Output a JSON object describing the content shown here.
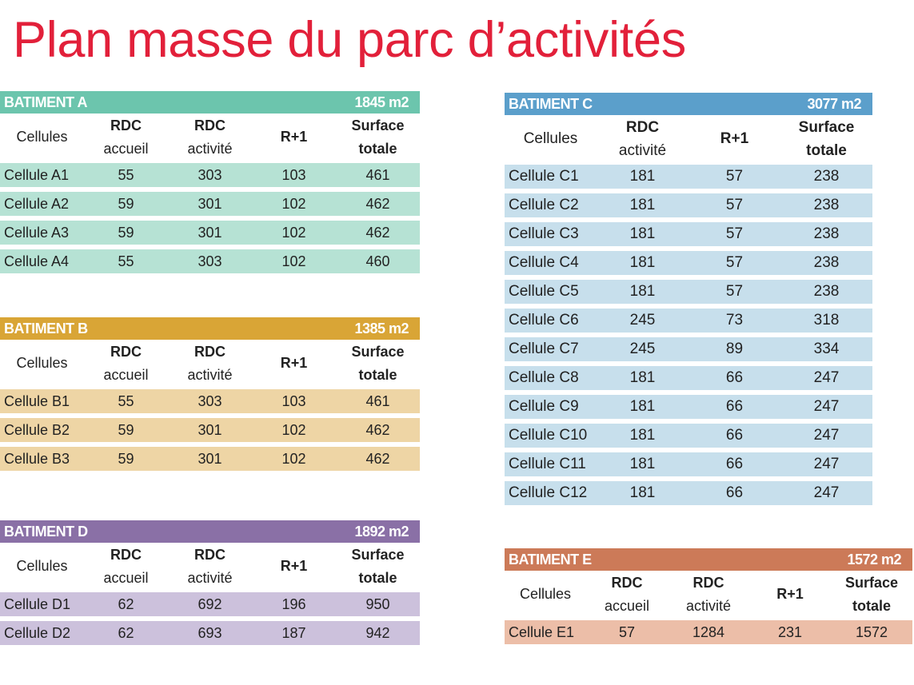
{
  "title": "Plan masse du parc d’activités",
  "tables": [
    {
      "id": "a",
      "name": "BATIMENT A",
      "total": "1845 m2",
      "bar_color": "#6cc5ad",
      "row_color": "#b6e2d4",
      "headers": [
        [
          "Cellules",
          ""
        ],
        [
          "RDC",
          "accueil"
        ],
        [
          "RDC",
          "activité"
        ],
        [
          "R+1",
          ""
        ],
        [
          "Surface",
          "totale"
        ]
      ],
      "rows": [
        [
          "Cellule A1",
          "55",
          "303",
          "103",
          "461"
        ],
        [
          "Cellule A2",
          "59",
          "301",
          "102",
          "462"
        ],
        [
          "Cellule A3",
          "59",
          "301",
          "102",
          "462"
        ],
        [
          "Cellule A4",
          "55",
          "303",
          "102",
          "460"
        ]
      ]
    },
    {
      "id": "b",
      "name": "BATIMENT B",
      "total": "1385 m2",
      "bar_color": "#d9a536",
      "row_color": "#eed5a5",
      "headers": [
        [
          "Cellules",
          ""
        ],
        [
          "RDC",
          "accueil"
        ],
        [
          "RDC",
          "activité"
        ],
        [
          "R+1",
          ""
        ],
        [
          "Surface",
          "totale"
        ]
      ],
      "rows": [
        [
          "Cellule B1",
          "55",
          "303",
          "103",
          "461"
        ],
        [
          "Cellule B2",
          "59",
          "301",
          "102",
          "462"
        ],
        [
          "Cellule B3",
          "59",
          "301",
          "102",
          "462"
        ]
      ]
    },
    {
      "id": "d",
      "name": "BATIMENT D",
      "total": "1892 m2",
      "bar_color": "#8a70a6",
      "row_color": "#ccc1dc",
      "headers": [
        [
          "Cellules",
          ""
        ],
        [
          "RDC",
          "accueil"
        ],
        [
          "RDC",
          "activité"
        ],
        [
          "R+1",
          ""
        ],
        [
          "Surface",
          "totale"
        ]
      ],
      "rows": [
        [
          "Cellule D1",
          "62",
          "692",
          "196",
          "950"
        ],
        [
          "Cellule D2",
          "62",
          "693",
          "187",
          "942"
        ]
      ]
    },
    {
      "id": "c",
      "name": "BATIMENT C",
      "total": "3077 m2",
      "bar_color": "#5b9fcb",
      "row_color": "#c7dfec",
      "headers": [
        [
          "Cellules",
          ""
        ],
        [
          "RDC",
          "activité"
        ],
        [
          "R+1",
          ""
        ],
        [
          "Surface",
          "totale"
        ]
      ],
      "rows": [
        [
          "Cellule C1",
          "181",
          "57",
          "238"
        ],
        [
          "Cellule C2",
          "181",
          "57",
          "238"
        ],
        [
          "Cellule C3",
          "181",
          "57",
          "238"
        ],
        [
          "Cellule C4",
          "181",
          "57",
          "238"
        ],
        [
          "Cellule C5",
          "181",
          "57",
          "238"
        ],
        [
          "Cellule C6",
          "245",
          "73",
          "318"
        ],
        [
          "Cellule C7",
          "245",
          "89",
          "334"
        ],
        [
          "Cellule C8",
          "181",
          "66",
          "247"
        ],
        [
          "Cellule C9",
          "181",
          "66",
          "247"
        ],
        [
          "Cellule C10",
          "181",
          "66",
          "247"
        ],
        [
          "Cellule C11",
          "181",
          "66",
          "247"
        ],
        [
          "Cellule C12",
          "181",
          "66",
          "247"
        ]
      ]
    },
    {
      "id": "e",
      "name": "BATIMENT E",
      "total": "1572 m2",
      "bar_color": "#cc7a58",
      "row_color": "#ecbea8",
      "headers": [
        [
          "Cellules",
          ""
        ],
        [
          "RDC",
          "accueil"
        ],
        [
          "RDC",
          "activité"
        ],
        [
          "R+1",
          ""
        ],
        [
          "Surface",
          "totale"
        ]
      ],
      "rows": [
        [
          "Cellule E1",
          "57",
          "1284",
          "231",
          "1572"
        ]
      ]
    }
  ]
}
